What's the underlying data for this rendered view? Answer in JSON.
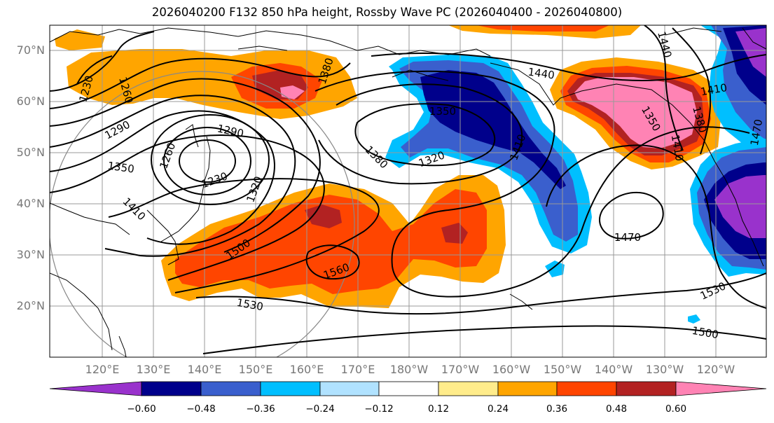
{
  "title": "2026040200 F132 850 hPa height, Rossby Wave PC (2026040400 - 2026040800)",
  "lat_labels": [
    "70°N",
    "60°N",
    "50°N",
    "40°N",
    "30°N",
    "20°N"
  ],
  "lon_labels": [
    "120°E",
    "130°E",
    "140°E",
    "150°E",
    "160°E",
    "170°E",
    "180°W",
    "170°W",
    "160°W",
    "150°W",
    "140°W",
    "130°W",
    "120°W"
  ],
  "contour_labels": [
    "1230",
    "1260",
    "1290",
    "1290",
    "1260",
    "1230",
    "1320",
    "1350",
    "1380",
    "1410",
    "1440",
    "1350",
    "1380",
    "1320",
    "1410",
    "1440",
    "1470",
    "1410",
    "1380",
    "1500",
    "1560",
    "1530",
    "1530",
    "1500",
    "1470",
    "1410",
    "1350"
  ],
  "colorbar": {
    "ticks": [
      "−0.60",
      "−0.48",
      "−0.36",
      "−0.24",
      "−0.12",
      "0.12",
      "0.24",
      "0.36",
      "0.48",
      "0.60"
    ],
    "colors": [
      "#9932cc",
      "#00008b",
      "#3a5fcd",
      "#00bfff",
      "#b0e2ff",
      "#ffffff",
      "#ffec8b",
      "#ffa500",
      "#ff4500",
      "#b22222",
      "#ff83b4"
    ]
  }
}
